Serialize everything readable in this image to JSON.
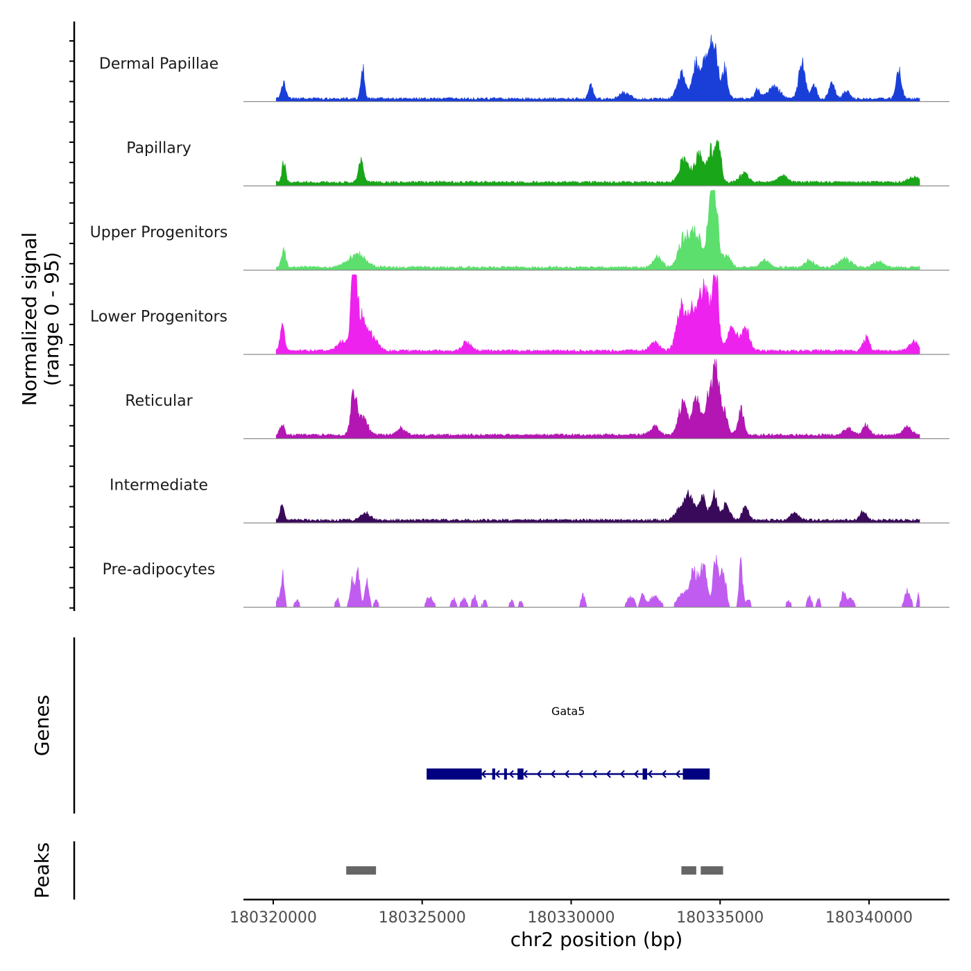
{
  "chart_data": {
    "type": "area",
    "chromosome": "chr2",
    "xlabel": "chr2 position (bp)",
    "ylabel_line1": "Normalized signal",
    "ylabel_line2": "(range 0 - 95)",
    "signal_range": [
      0,
      95
    ],
    "xlim": [
      180319000,
      180342700
    ],
    "data_extent": [
      180320100,
      180341700
    ],
    "x_ticks": [
      180320000,
      180325000,
      180330000,
      180335000,
      180340000
    ],
    "x_tick_labels": [
      "180320000",
      "180325000",
      "180330000",
      "180335000",
      "180340000"
    ],
    "tracks": [
      {
        "name": "Dermal Papillae",
        "color": "#1a3fd9",
        "baseline": 2,
        "noise": 3,
        "sparse": false,
        "peaks": [
          [
            180320350,
            20,
            70
          ],
          [
            180323000,
            40,
            60
          ],
          [
            180330650,
            18,
            70
          ],
          [
            180331800,
            8,
            150
          ],
          [
            180333700,
            30,
            140
          ],
          [
            180334200,
            45,
            120
          ],
          [
            180334500,
            44,
            90
          ],
          [
            180334700,
            55,
            90
          ],
          [
            180334850,
            50,
            90
          ],
          [
            180335150,
            35,
            100
          ],
          [
            180336250,
            12,
            90
          ],
          [
            180336800,
            14,
            200
          ],
          [
            180337750,
            42,
            110
          ],
          [
            180338150,
            15,
            90
          ],
          [
            180338750,
            18,
            100
          ],
          [
            180339250,
            10,
            100
          ],
          [
            180341000,
            33,
            90
          ]
        ]
      },
      {
        "name": "Papillary",
        "color": "#19a619",
        "baseline": 3,
        "noise": 3,
        "sparse": false,
        "peaks": [
          [
            180320350,
            25,
            60
          ],
          [
            180322950,
            28,
            80
          ],
          [
            180333800,
            28,
            160
          ],
          [
            180334300,
            33,
            140
          ],
          [
            180334700,
            38,
            120
          ],
          [
            180334950,
            40,
            90
          ],
          [
            180335800,
            10,
            150
          ],
          [
            180337100,
            8,
            150
          ],
          [
            180341500,
            6,
            200
          ]
        ]
      },
      {
        "name": "Upper Progenitors",
        "color": "#5cdf6d",
        "baseline": 2,
        "noise": 3,
        "sparse": false,
        "peaks": [
          [
            180320350,
            20,
            70
          ],
          [
            180322800,
            16,
            280
          ],
          [
            180332900,
            12,
            150
          ],
          [
            180333800,
            35,
            180
          ],
          [
            180334200,
            40,
            160
          ],
          [
            180334800,
            90,
            110
          ],
          [
            180334650,
            45,
            120
          ],
          [
            180335200,
            15,
            150
          ],
          [
            180336500,
            8,
            150
          ],
          [
            180338000,
            8,
            150
          ],
          [
            180339200,
            10,
            200
          ],
          [
            180340300,
            7,
            150
          ]
        ]
      },
      {
        "name": "Lower Progenitors",
        "color": "#ee22ee",
        "baseline": 3,
        "noise": 3,
        "sparse": false,
        "peaks": [
          [
            180320300,
            30,
            70
          ],
          [
            180322700,
            85,
            90
          ],
          [
            180322300,
            12,
            150
          ],
          [
            180322900,
            40,
            180
          ],
          [
            180323300,
            15,
            200
          ],
          [
            180326500,
            10,
            150
          ],
          [
            180332800,
            10,
            150
          ],
          [
            180333700,
            50,
            160
          ],
          [
            180334100,
            45,
            150
          ],
          [
            180334400,
            60,
            130
          ],
          [
            180334850,
            90,
            100
          ],
          [
            180334600,
            40,
            120
          ],
          [
            180335400,
            28,
            160
          ],
          [
            180335850,
            25,
            140
          ],
          [
            180339900,
            15,
            110
          ],
          [
            180341500,
            10,
            150
          ]
        ]
      },
      {
        "name": "Reticular",
        "color": "#b316b3",
        "baseline": 3,
        "noise": 3,
        "sparse": false,
        "peaks": [
          [
            180320300,
            15,
            70
          ],
          [
            180322700,
            48,
            100
          ],
          [
            180323000,
            20,
            160
          ],
          [
            180324300,
            8,
            150
          ],
          [
            180332800,
            10,
            150
          ],
          [
            180333750,
            35,
            150
          ],
          [
            180334200,
            40,
            130
          ],
          [
            180334600,
            45,
            120
          ],
          [
            180334850,
            80,
            100
          ],
          [
            180335100,
            30,
            130
          ],
          [
            180335700,
            30,
            100
          ],
          [
            180339300,
            8,
            150
          ],
          [
            180339900,
            12,
            110
          ],
          [
            180341300,
            10,
            150
          ]
        ]
      },
      {
        "name": "Intermediate",
        "color": "#3a0a5a",
        "baseline": 2,
        "noise": 3,
        "sparse": false,
        "peaks": [
          [
            180320300,
            18,
            70
          ],
          [
            180323100,
            8,
            150
          ],
          [
            180333700,
            15,
            180
          ],
          [
            180334000,
            25,
            150
          ],
          [
            180334400,
            28,
            130
          ],
          [
            180334800,
            30,
            110
          ],
          [
            180335200,
            20,
            120
          ],
          [
            180335850,
            15,
            110
          ],
          [
            180337500,
            8,
            150
          ],
          [
            180339800,
            10,
            110
          ]
        ]
      },
      {
        "name": "Pre-adipocytes",
        "color": "#c05cf0",
        "baseline": 0,
        "noise": 0,
        "sparse": true,
        "peaks": [
          [
            180320320,
            42,
            60
          ],
          [
            180320150,
            10,
            60
          ],
          [
            180320800,
            8,
            80
          ],
          [
            180322150,
            12,
            60
          ],
          [
            180322650,
            30,
            80
          ],
          [
            180322850,
            42,
            70
          ],
          [
            180323150,
            30,
            70
          ],
          [
            180323450,
            10,
            60
          ],
          [
            180325250,
            12,
            120
          ],
          [
            180326050,
            10,
            80
          ],
          [
            180326400,
            10,
            100
          ],
          [
            180326750,
            14,
            70
          ],
          [
            180327100,
            8,
            80
          ],
          [
            180328000,
            8,
            70
          ],
          [
            180328300,
            8,
            60
          ],
          [
            180330400,
            14,
            70
          ],
          [
            180332000,
            12,
            130
          ],
          [
            180332400,
            14,
            70
          ],
          [
            180332800,
            12,
            180
          ],
          [
            180333700,
            15,
            150
          ],
          [
            180334100,
            40,
            150
          ],
          [
            180334450,
            48,
            120
          ],
          [
            180334850,
            52,
            90
          ],
          [
            180335100,
            40,
            100
          ],
          [
            180335700,
            52,
            60
          ],
          [
            180335950,
            10,
            70
          ],
          [
            180337300,
            8,
            80
          ],
          [
            180338000,
            14,
            70
          ],
          [
            180338300,
            10,
            60
          ],
          [
            180339150,
            18,
            80
          ],
          [
            180339400,
            12,
            80
          ],
          [
            180341300,
            20,
            100
          ],
          [
            180341650,
            14,
            40
          ]
        ]
      }
    ],
    "gene": {
      "name": "Gata5",
      "color": "#000080",
      "strand": "-",
      "start": 180325150,
      "end": 180334650,
      "exons": [
        [
          180325150,
          180327000
        ],
        [
          180327350,
          180327450
        ],
        [
          180327750,
          180327800
        ],
        [
          180328200,
          180328400
        ],
        [
          180332400,
          180332550
        ],
        [
          180333750,
          180334650
        ]
      ]
    },
    "peaks_track": {
      "color": "#666666",
      "regions": [
        [
          180322450,
          180323450
        ],
        [
          180333700,
          180334200
        ],
        [
          180334350,
          180335100
        ]
      ]
    }
  }
}
